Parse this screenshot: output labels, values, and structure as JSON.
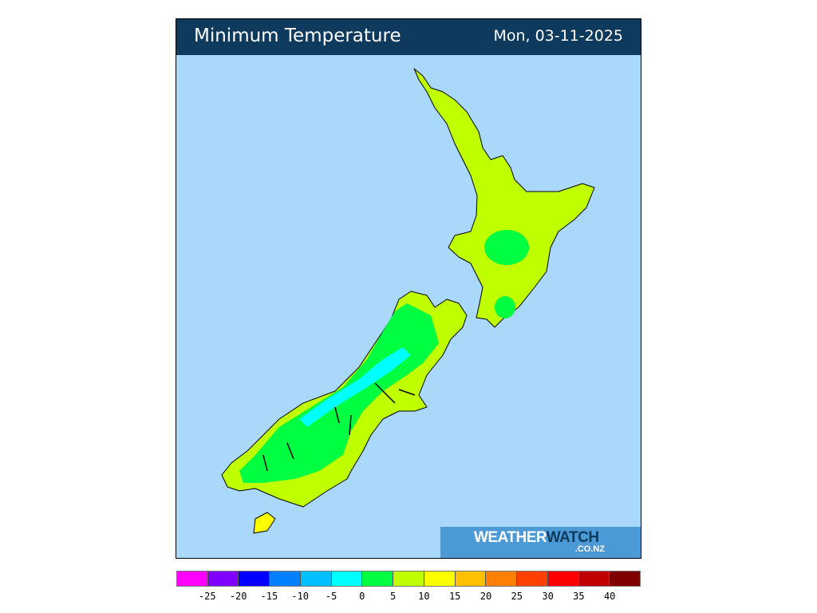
{
  "header": {
    "title": "Minimum Temperature",
    "date": "Mon, 03-11-2025"
  },
  "logo": {
    "main_light": "WEATHER",
    "main_dark": "WATCH",
    "sub": ".CO.NZ"
  },
  "colors": {
    "ocean": "#a9d8fb",
    "header": "#0e3a5e",
    "land_5_10": "#c0ff00",
    "land_0_5": "#00ff40",
    "land_m5_0": "#00ffff",
    "land_10_15": "#ffff00"
  },
  "legend": {
    "colors": [
      "#ff00ff",
      "#8000ff",
      "#0000ff",
      "#0080ff",
      "#00c0ff",
      "#00ffff",
      "#00ff40",
      "#c0ff00",
      "#ffff00",
      "#ffc000",
      "#ff8000",
      "#ff4000",
      "#ff0000",
      "#c00000",
      "#800000"
    ],
    "ticks": [
      "-25",
      "-20",
      "-15",
      "-10",
      "-5",
      "0",
      "5",
      "10",
      "15",
      "20",
      "25",
      "30",
      "35",
      "40"
    ]
  }
}
